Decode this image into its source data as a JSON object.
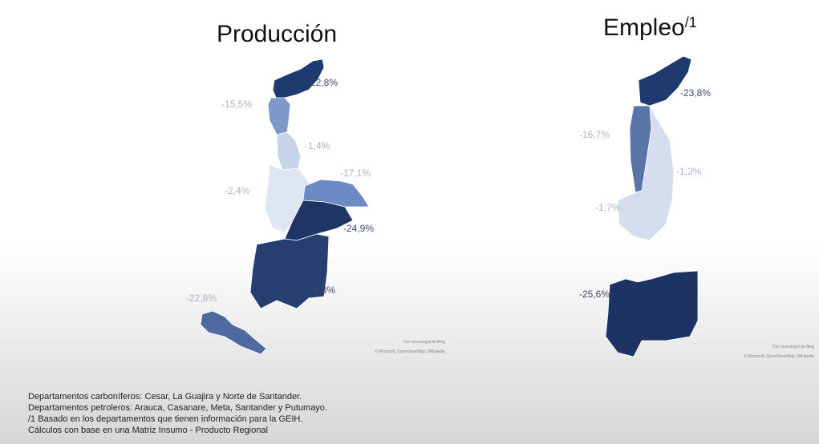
{
  "maps": [
    {
      "title": "Producción",
      "regions": [
        {
          "label": "-22,8%"
        },
        {
          "label": "-15,5%"
        },
        {
          "label": "-1,4%"
        },
        {
          "label": "-2,4%"
        },
        {
          "label": "-17,1%"
        },
        {
          "label": "-24,9%"
        },
        {
          "label": "-24,3%"
        },
        {
          "label": "-22,8%"
        }
      ],
      "attribution": [
        "Con tecnología de Bing",
        "© Microsoft, OpenStreetMap, Wikipedia"
      ]
    },
    {
      "title": "Empleo",
      "title_superscript": "/1",
      "regions": [
        {
          "label": "-23,8%"
        },
        {
          "label": "-16,7%"
        },
        {
          "label": "-1,3%"
        },
        {
          "label": "-1,7%"
        },
        {
          "label": "-25,6%"
        }
      ],
      "attribution": [
        "Con tecnología de Bing",
        "© Microsoft, OpenStreetMap, Wikipedia"
      ]
    }
  ],
  "notes": [
    "Departamentos carboníferos: Cesar, La Guajira y Norte de Santander.",
    "Departamentos petroleros: Arauca, Casanare, Meta, Santander y Putumayo.",
    "/1 Basado en los departamentos que tienen información para la GEIH.",
    "Cálculos con base en una Matriz Insumo - Producto Regional"
  ]
}
